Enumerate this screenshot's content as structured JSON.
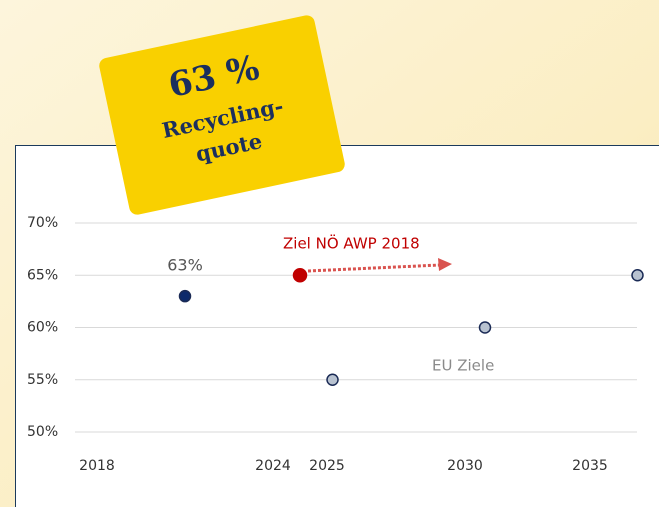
{
  "badge": {
    "value": "63 %",
    "line1": "Recycling-",
    "line2": "quote"
  },
  "chart_data": {
    "type": "scatter",
    "series": [
      {
        "color": "#0d2a6b",
        "x": [
          2021
        ],
        "values": [
          63
        ],
        "value_labels": [
          "63%"
        ]
      },
      {
        "name": "Ziel NÖ AWP 2018",
        "color": "#c00000",
        "x": [
          2024.5
        ],
        "values": [
          65
        ]
      },
      {
        "name": "EU Ziele",
        "color": "#b8c2d0",
        "x": [
          2025.2,
          2030.8,
          2036.9
        ],
        "values": [
          55,
          60,
          65
        ]
      }
    ],
    "xticks": [
      2018,
      2024,
      2025,
      2030,
      2035
    ],
    "ylim": [
      50,
      70
    ],
    "yticks": [
      {
        "value": 50,
        "label": "50%"
      },
      {
        "value": 55,
        "label": "55%"
      },
      {
        "value": 60,
        "label": "60%"
      },
      {
        "value": 65,
        "label": "65%"
      },
      {
        "value": 70,
        "label": "70%"
      }
    ],
    "grid": true
  }
}
